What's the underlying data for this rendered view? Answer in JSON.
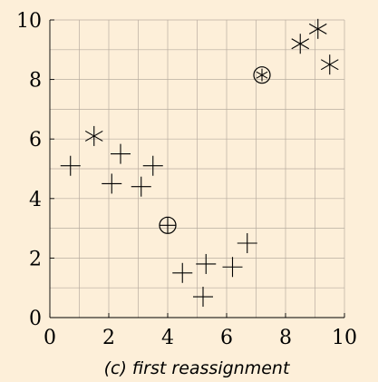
{
  "chart_data": {
    "type": "scatter",
    "caption": "(c) first reassignment",
    "xlim": [
      0,
      10
    ],
    "ylim": [
      0,
      10
    ],
    "x_ticks": [
      0,
      2,
      4,
      6,
      8,
      10
    ],
    "y_ticks": [
      0,
      2,
      4,
      6,
      8,
      10
    ],
    "grid": true,
    "grid_step": 1,
    "colors": {
      "background": "#fdefd9",
      "grid": "#b8ada0",
      "marker": "#000000"
    },
    "series": [
      {
        "marker": "plus",
        "points": [
          [
            0.7,
            5.1
          ],
          [
            2.1,
            4.5
          ],
          [
            2.4,
            5.5
          ],
          [
            3.1,
            4.4
          ],
          [
            3.5,
            5.1
          ],
          [
            4.5,
            1.5
          ],
          [
            5.2,
            0.7
          ],
          [
            5.3,
            1.8
          ],
          [
            6.2,
            1.7
          ],
          [
            6.7,
            2.5
          ]
        ]
      },
      {
        "marker": "asterisk",
        "points": [
          [
            1.5,
            6.1
          ],
          [
            8.5,
            9.2
          ],
          [
            9.1,
            9.7
          ],
          [
            9.5,
            8.5
          ]
        ]
      }
    ],
    "centroids": [
      {
        "marker": "circled-plus",
        "x": 4.0,
        "y": 3.1
      },
      {
        "marker": "circled-asterisk",
        "x": 7.2,
        "y": 8.15
      }
    ]
  }
}
